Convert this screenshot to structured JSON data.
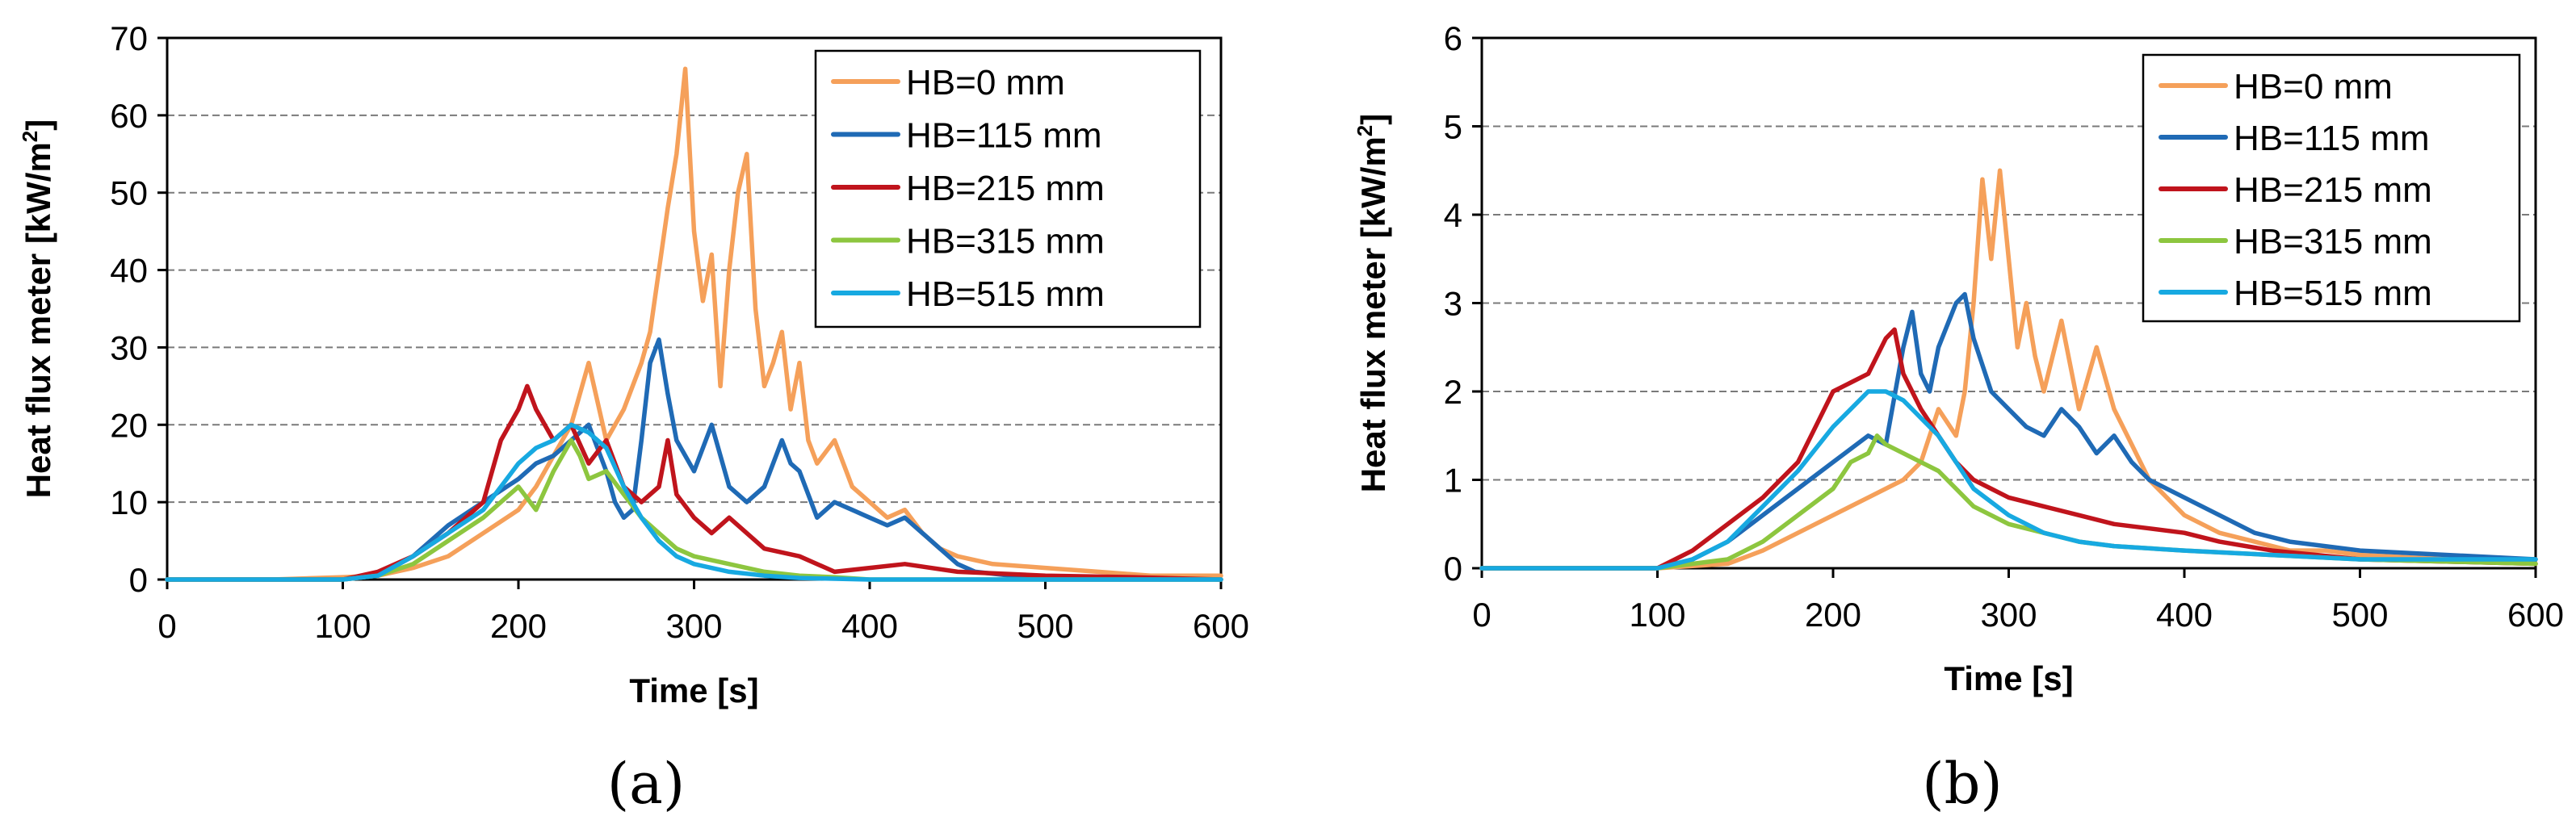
{
  "figure": {
    "panel_labels": [
      "(a)",
      "(b)"
    ]
  },
  "chart_data": [
    {
      "id": "a",
      "type": "line",
      "panel_label": "(a)",
      "xlabel": "Time [s]",
      "ylabel": "Heat flux meter [kW/m",
      "ylabel_sup": "2",
      "ylabel_close": "]",
      "xlim": [
        0,
        600
      ],
      "ylim": [
        0,
        70
      ],
      "xticks": [
        0,
        100,
        200,
        300,
        400,
        500,
        600
      ],
      "yticks": [
        0,
        10,
        20,
        30,
        40,
        50,
        60,
        70
      ],
      "grid": "horizontal dashed",
      "legend_position": "top-right",
      "series": [
        {
          "name": "HB=0 mm",
          "color": "#F5A05A",
          "x": [
            0,
            60,
            100,
            120,
            140,
            160,
            180,
            200,
            210,
            220,
            230,
            240,
            250,
            260,
            270,
            275,
            280,
            285,
            290,
            295,
            300,
            305,
            310,
            315,
            320,
            325,
            330,
            335,
            340,
            345,
            350,
            355,
            360,
            365,
            370,
            380,
            390,
            400,
            410,
            420,
            430,
            440,
            450,
            470,
            500,
            530,
            560,
            600
          ],
          "y": [
            0,
            0,
            0.3,
            0.5,
            1.5,
            3,
            6,
            9,
            12,
            16,
            20,
            28,
            18,
            22,
            28,
            32,
            40,
            48,
            55,
            66,
            45,
            36,
            42,
            25,
            40,
            50,
            55,
            35,
            25,
            28,
            32,
            22,
            28,
            18,
            15,
            18,
            12,
            10,
            8,
            9,
            6,
            4,
            3,
            2,
            1.5,
            1,
            0.5,
            0.5
          ]
        },
        {
          "name": "HB=115 mm",
          "color": "#1F6AB5",
          "x": [
            0,
            100,
            120,
            140,
            160,
            180,
            200,
            210,
            220,
            230,
            240,
            250,
            255,
            260,
            265,
            270,
            275,
            280,
            285,
            290,
            300,
            310,
            320,
            330,
            340,
            350,
            355,
            360,
            370,
            380,
            390,
            400,
            410,
            420,
            430,
            440,
            450,
            460,
            480,
            500,
            600
          ],
          "y": [
            0,
            0,
            0.5,
            3,
            7,
            10,
            13,
            15,
            16,
            18,
            20,
            14,
            10,
            8,
            9,
            18,
            28,
            31,
            24,
            18,
            14,
            20,
            12,
            10,
            12,
            18,
            15,
            14,
            8,
            10,
            9,
            8,
            7,
            8,
            6,
            4,
            2,
            1,
            0.5,
            0,
            0
          ]
        },
        {
          "name": "HB=215 mm",
          "color": "#C0141C",
          "x": [
            0,
            100,
            120,
            140,
            160,
            180,
            190,
            200,
            205,
            210,
            220,
            230,
            240,
            250,
            260,
            270,
            280,
            285,
            290,
            300,
            310,
            320,
            340,
            360,
            380,
            400,
            420,
            450,
            500,
            550,
            600
          ],
          "y": [
            0,
            0,
            1,
            3,
            6,
            10,
            18,
            22,
            25,
            22,
            18,
            20,
            15,
            18,
            12,
            10,
            12,
            18,
            11,
            8,
            6,
            8,
            4,
            3,
            1,
            1.5,
            2,
            1,
            0.5,
            0.3,
            0
          ]
        },
        {
          "name": "HB=315 mm",
          "color": "#8DC63F",
          "x": [
            0,
            100,
            120,
            140,
            160,
            180,
            190,
            200,
            210,
            220,
            230,
            235,
            240,
            250,
            260,
            270,
            280,
            290,
            300,
            320,
            340,
            360,
            380,
            400,
            600
          ],
          "y": [
            0,
            0,
            0.5,
            2,
            5,
            8,
            10,
            12,
            9,
            14,
            18,
            16,
            13,
            14,
            11,
            8,
            6,
            4,
            3,
            2,
            1,
            0.5,
            0.3,
            0,
            0
          ]
        },
        {
          "name": "HB=515 mm",
          "color": "#17A9E1",
          "x": [
            0,
            100,
            120,
            140,
            160,
            180,
            190,
            200,
            210,
            220,
            230,
            240,
            250,
            260,
            270,
            280,
            290,
            300,
            320,
            340,
            360,
            400,
            600
          ],
          "y": [
            0,
            0,
            0.5,
            3,
            6,
            9,
            12,
            15,
            17,
            18,
            20,
            19,
            17,
            12,
            8,
            5,
            3,
            2,
            1,
            0.5,
            0.2,
            0,
            0
          ]
        }
      ]
    },
    {
      "id": "b",
      "type": "line",
      "panel_label": "(b)",
      "xlabel": "Time [s]",
      "ylabel": "Heat flux meter [kW/m",
      "ylabel_sup": "2",
      "ylabel_close": "]",
      "xlim": [
        0,
        600
      ],
      "ylim": [
        0,
        6
      ],
      "xticks": [
        0,
        100,
        200,
        300,
        400,
        500,
        600
      ],
      "yticks": [
        0,
        1,
        2,
        3,
        4,
        5,
        6
      ],
      "grid": "horizontal dashed",
      "legend_position": "top-right",
      "series": [
        {
          "name": "HB=0 mm",
          "color": "#F5A05A",
          "x": [
            0,
            100,
            140,
            160,
            180,
            200,
            220,
            240,
            250,
            260,
            270,
            275,
            280,
            285,
            290,
            295,
            300,
            305,
            310,
            315,
            320,
            330,
            340,
            350,
            360,
            370,
            380,
            400,
            420,
            440,
            460,
            480,
            500,
            550,
            600
          ],
          "y": [
            0,
            0,
            0.05,
            0.2,
            0.4,
            0.6,
            0.8,
            1.0,
            1.2,
            1.8,
            1.5,
            2.0,
            3.0,
            4.4,
            3.5,
            4.5,
            3.5,
            2.5,
            3.0,
            2.4,
            2.0,
            2.8,
            1.8,
            2.5,
            1.8,
            1.4,
            1.0,
            0.6,
            0.4,
            0.3,
            0.2,
            0.2,
            0.15,
            0.1,
            0.1
          ]
        },
        {
          "name": "HB=115 mm",
          "color": "#1F6AB5",
          "x": [
            0,
            100,
            120,
            140,
            160,
            180,
            200,
            220,
            230,
            240,
            245,
            250,
            255,
            260,
            270,
            275,
            280,
            290,
            300,
            310,
            320,
            330,
            340,
            350,
            360,
            370,
            380,
            400,
            420,
            440,
            460,
            500,
            550,
            600
          ],
          "y": [
            0,
            0,
            0.1,
            0.3,
            0.6,
            0.9,
            1.2,
            1.5,
            1.4,
            2.5,
            2.9,
            2.2,
            2.0,
            2.5,
            3.0,
            3.1,
            2.6,
            2.0,
            1.8,
            1.6,
            1.5,
            1.8,
            1.6,
            1.3,
            1.5,
            1.2,
            1.0,
            0.8,
            0.6,
            0.4,
            0.3,
            0.2,
            0.15,
            0.1
          ]
        },
        {
          "name": "HB=215 mm",
          "color": "#C0141C",
          "x": [
            0,
            100,
            120,
            140,
            160,
            180,
            190,
            200,
            210,
            220,
            230,
            235,
            240,
            250,
            260,
            270,
            280,
            290,
            300,
            320,
            340,
            360,
            380,
            400,
            420,
            450,
            500,
            600
          ],
          "y": [
            0,
            0,
            0.2,
            0.5,
            0.8,
            1.2,
            1.6,
            2.0,
            2.1,
            2.2,
            2.6,
            2.7,
            2.2,
            1.8,
            1.5,
            1.2,
            1.0,
            0.9,
            0.8,
            0.7,
            0.6,
            0.5,
            0.45,
            0.4,
            0.3,
            0.2,
            0.1,
            0.05
          ]
        },
        {
          "name": "HB=315 mm",
          "color": "#8DC63F",
          "x": [
            0,
            100,
            140,
            160,
            180,
            200,
            210,
            220,
            225,
            230,
            240,
            250,
            260,
            270,
            280,
            300,
            320,
            340,
            360,
            400,
            450,
            500,
            600
          ],
          "y": [
            0,
            0,
            0.1,
            0.3,
            0.6,
            0.9,
            1.2,
            1.3,
            1.5,
            1.4,
            1.3,
            1.2,
            1.1,
            0.9,
            0.7,
            0.5,
            0.4,
            0.3,
            0.25,
            0.2,
            0.15,
            0.1,
            0.05
          ]
        },
        {
          "name": "HB=515 mm",
          "color": "#17A9E1",
          "x": [
            0,
            100,
            120,
            140,
            160,
            180,
            200,
            210,
            220,
            230,
            240,
            250,
            260,
            270,
            280,
            300,
            320,
            340,
            360,
            400,
            450,
            500,
            600
          ],
          "y": [
            0,
            0,
            0.1,
            0.3,
            0.7,
            1.1,
            1.6,
            1.8,
            2.0,
            2.0,
            1.9,
            1.7,
            1.5,
            1.2,
            0.9,
            0.6,
            0.4,
            0.3,
            0.25,
            0.2,
            0.15,
            0.1,
            0.1
          ]
        }
      ]
    }
  ]
}
